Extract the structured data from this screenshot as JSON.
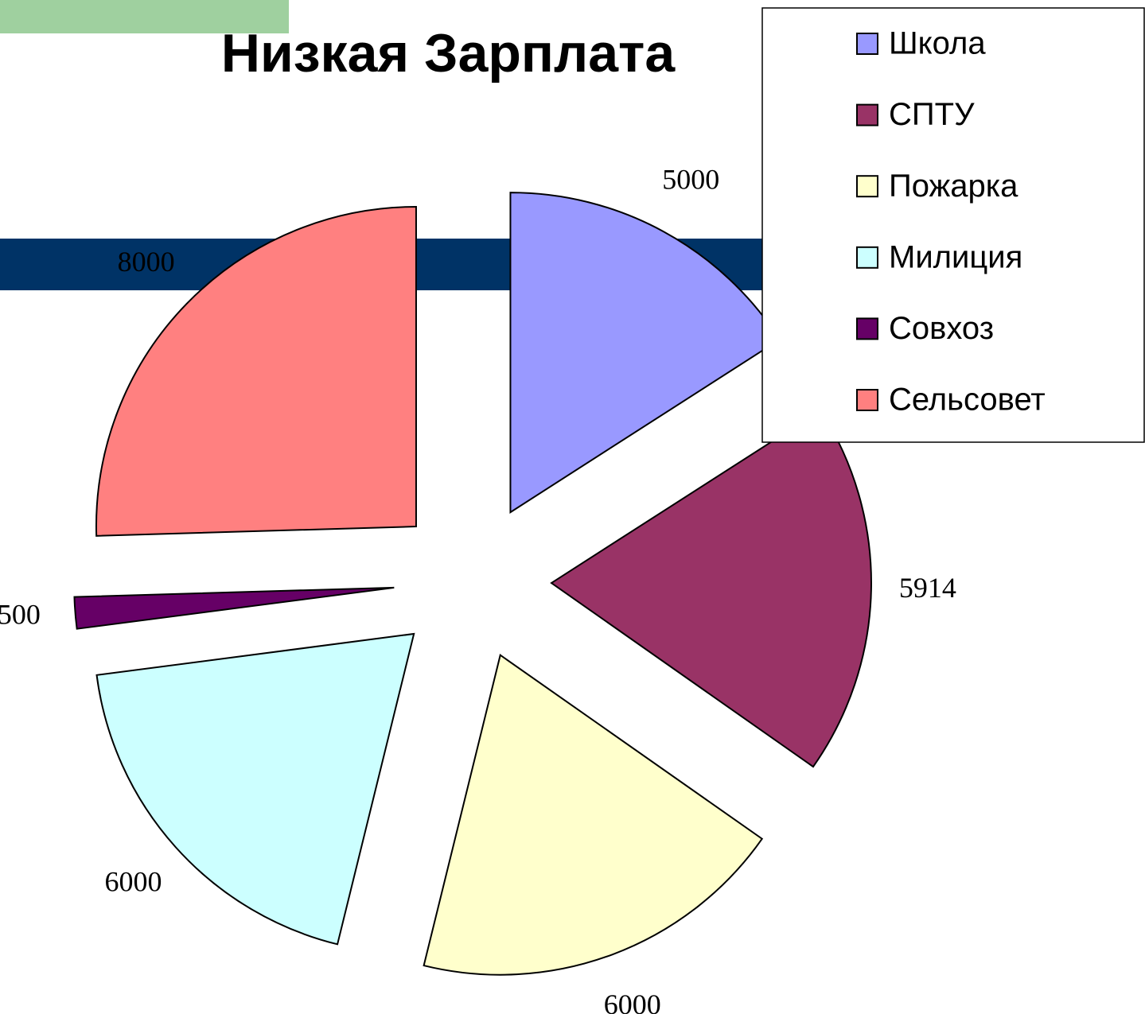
{
  "chart_data": {
    "type": "pie",
    "title": "Низкая Зарплата",
    "categories": [
      "Школа",
      "СПТУ",
      "Пожарка",
      "Милиция",
      "Совхоз",
      "Сельсовет"
    ],
    "values": [
      5000,
      5914,
      6000,
      6000,
      500,
      8000
    ],
    "colors": [
      "#9999ff",
      "#993366",
      "#ffffcc",
      "#ccffff",
      "#660066",
      "#ff8080"
    ],
    "legend": "upper right"
  }
}
